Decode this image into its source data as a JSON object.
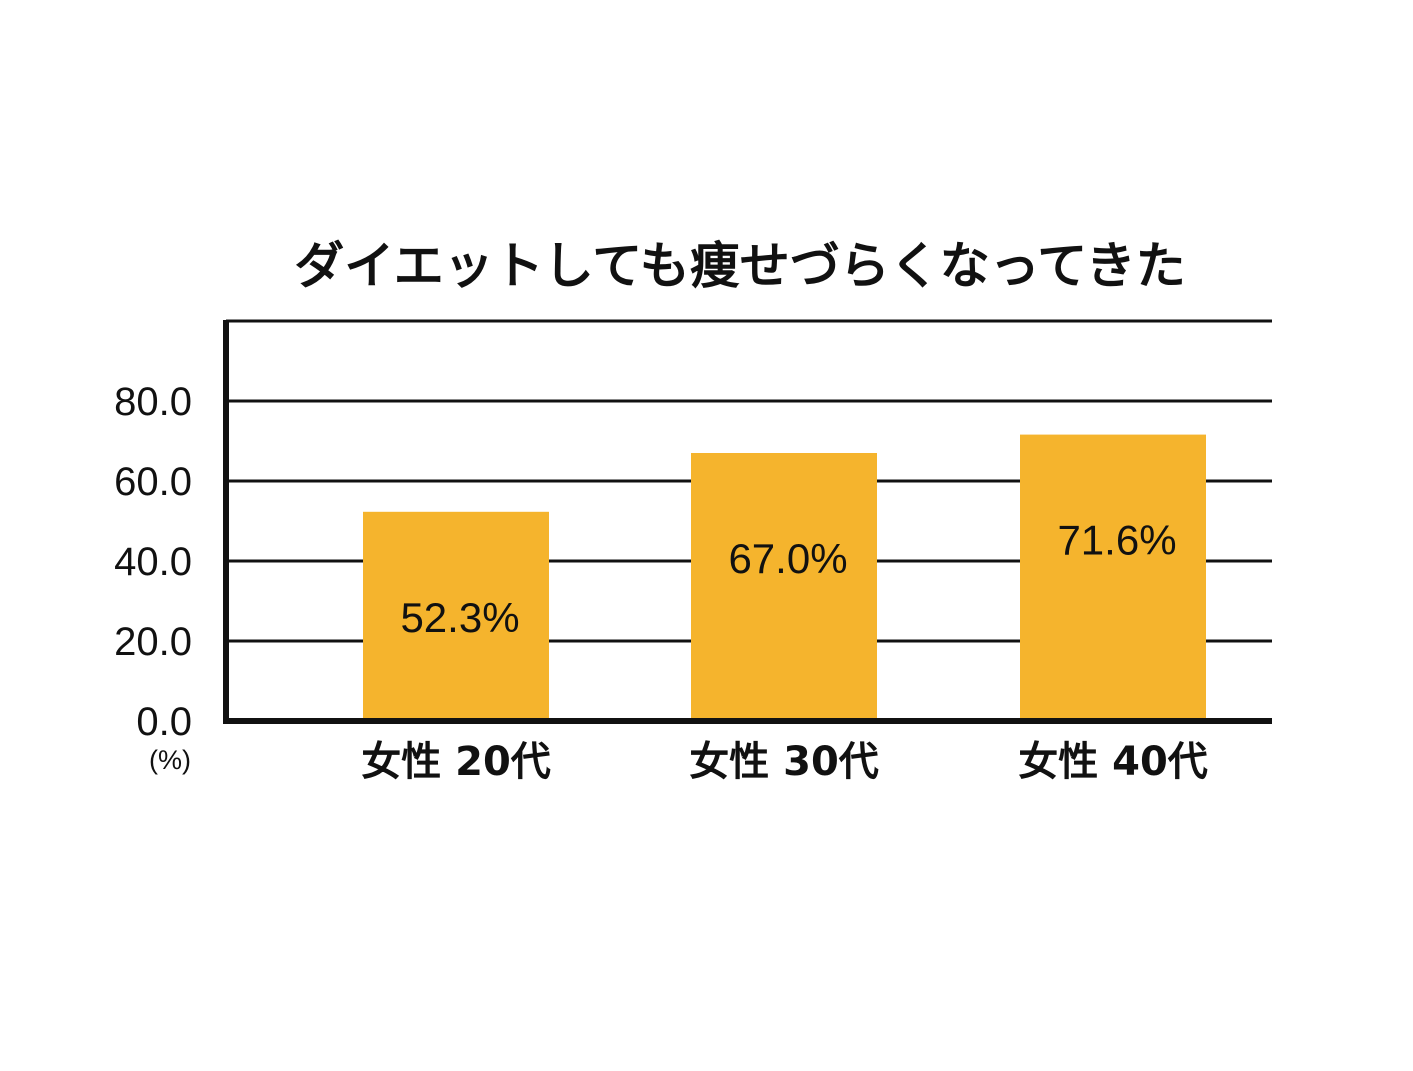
{
  "chart_data": {
    "type": "bar",
    "title": "ダイエットしても痩せづらくなってきた",
    "categories": [
      "女性 20代",
      "女性 30代",
      "女性 40代"
    ],
    "values": [
      52.3,
      67.0,
      71.6
    ],
    "data_labels": [
      "52.3%",
      "67.0%",
      "71.6%"
    ],
    "y_ticks": [
      "0.0",
      "20.0",
      "40.0",
      "60.0",
      "80.0"
    ],
    "y_unit": "(%)",
    "ylim": [
      0,
      100
    ],
    "grid": true,
    "bar_color": "#F5B42D"
  }
}
